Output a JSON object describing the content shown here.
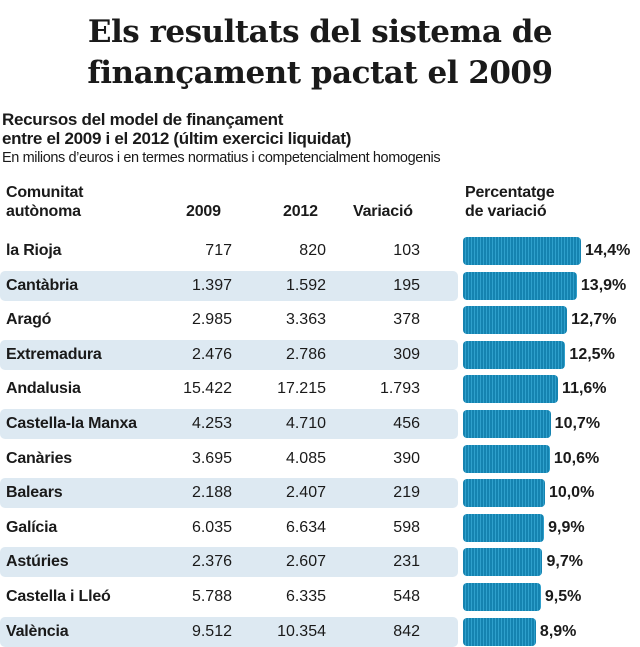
{
  "title": [
    "Els resultats del sistema de",
    "finançament pactat el 2009"
  ],
  "subtitle": [
    "Recursos del model de finançament",
    "entre el 2009 i el 2012 (últim exercici liquidat)"
  ],
  "note": "En milions d’euros i en termes normatius i competencialment homogenis",
  "headers": {
    "region": [
      "Comunitat",
      "autònoma"
    ],
    "y2009": "2009",
    "y2012": "2012",
    "variation": "Variació",
    "pct": [
      "Percentatge",
      "de variació"
    ]
  },
  "colors": {
    "bar": "#1a8fbd",
    "row_alt": "#dde9f2"
  },
  "chart_data": {
    "type": "bar",
    "orientation": "horizontal",
    "categories": [
      "la Rioja",
      "Cantàbria",
      "Aragó",
      "Extremadura",
      "Andalusia",
      "Castella-la Manxa",
      "Canàries",
      "Balears",
      "Galícia",
      "Astúries",
      "Castella i Lleó",
      "València"
    ],
    "values": [
      14.4,
      13.9,
      12.7,
      12.5,
      11.6,
      10.7,
      10.6,
      10.0,
      9.9,
      9.7,
      9.5,
      8.9
    ],
    "value_labels": [
      "14,4%",
      "13,9%",
      "12,7%",
      "12,5%",
      "11,6%",
      "10,7%",
      "10,6%",
      "10,0%",
      "9,9%",
      "9,7%",
      "9,5%",
      "8,9%"
    ],
    "table": {
      "y2009": [
        "717",
        "1.397",
        "2.985",
        "2.476",
        "15.422",
        "4.253",
        "3.695",
        "2.188",
        "6.035",
        "2.376",
        "5.788",
        "9.512"
      ],
      "y2012": [
        "820",
        "1.592",
        "3.363",
        "2.786",
        "17.215",
        "4.710",
        "4.085",
        "2.407",
        "6.634",
        "2.607",
        "6.335",
        "10.354"
      ],
      "variation": [
        "103",
        "195",
        "378",
        "309",
        "1.793",
        "456",
        "390",
        "219",
        "598",
        "231",
        "548",
        "842"
      ]
    },
    "xlim": [
      0,
      14.4
    ]
  }
}
